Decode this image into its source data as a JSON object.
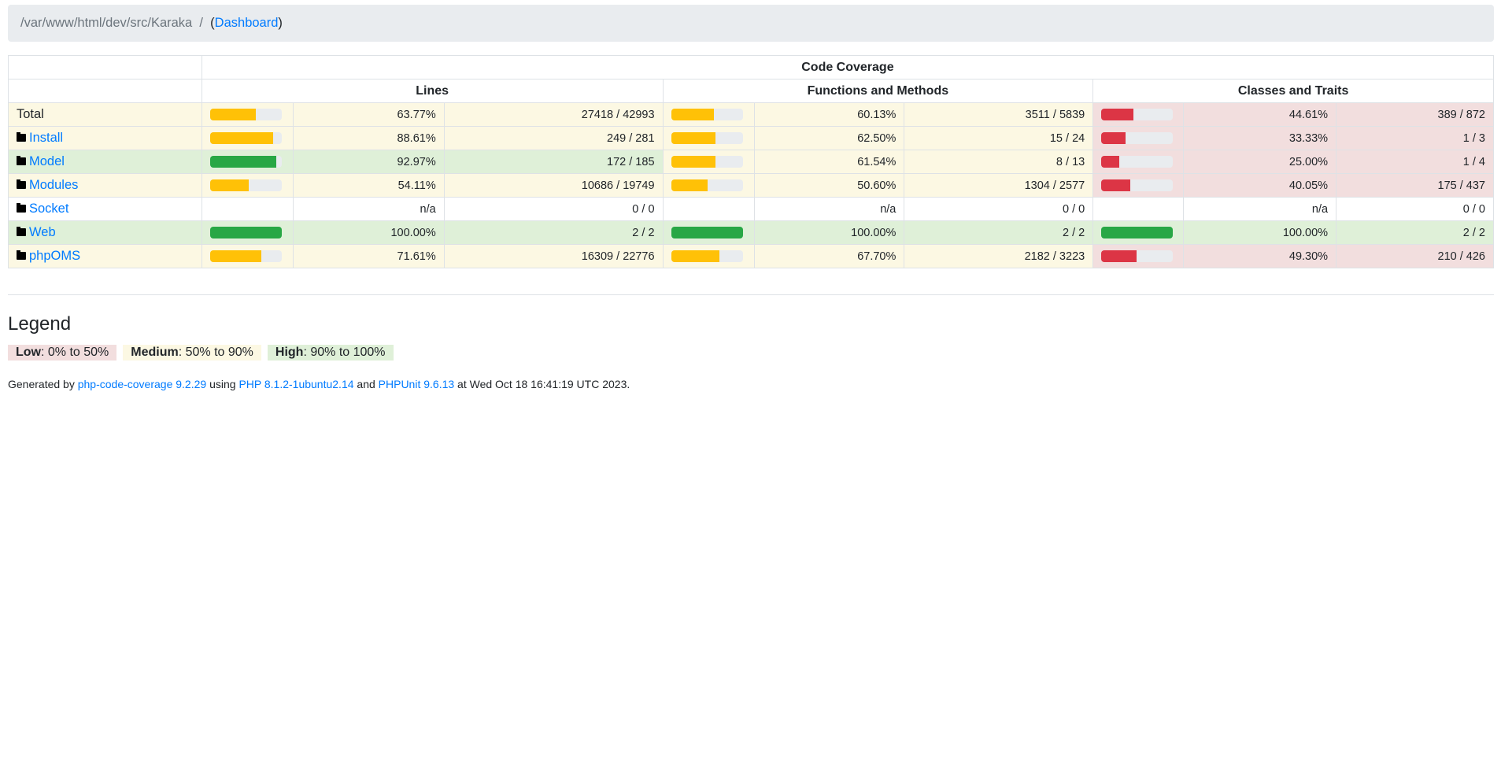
{
  "breadcrumb": {
    "path": "/var/www/html/dev/src/Karaka",
    "sep": "/",
    "open": "(",
    "link": "Dashboard",
    "close": ")"
  },
  "table": {
    "group_header": "Code Coverage",
    "headers": [
      "Lines",
      "Functions and Methods",
      "Classes and Traits"
    ],
    "rows": [
      {
        "name": "Total",
        "folder": false,
        "level": "warning",
        "metrics": [
          {
            "pct": "63.77%",
            "frac": "27418 / 42993",
            "level": "warning",
            "value": 63.77
          },
          {
            "pct": "60.13%",
            "frac": "3511 / 5839",
            "level": "warning",
            "value": 60.13
          },
          {
            "pct": "44.61%",
            "frac": "389 / 872",
            "level": "danger",
            "value": 44.61
          }
        ]
      },
      {
        "name": "Install",
        "folder": true,
        "level": "warning",
        "metrics": [
          {
            "pct": "88.61%",
            "frac": "249 / 281",
            "level": "warning",
            "value": 88.61
          },
          {
            "pct": "62.50%",
            "frac": "15 / 24",
            "level": "warning",
            "value": 62.5
          },
          {
            "pct": "33.33%",
            "frac": "1 / 3",
            "level": "danger",
            "value": 33.33
          }
        ]
      },
      {
        "name": "Model",
        "folder": true,
        "level": "success",
        "metrics": [
          {
            "pct": "92.97%",
            "frac": "172 / 185",
            "level": "success",
            "value": 92.97
          },
          {
            "pct": "61.54%",
            "frac": "8 / 13",
            "level": "warning",
            "value": 61.54
          },
          {
            "pct": "25.00%",
            "frac": "1 / 4",
            "level": "danger",
            "value": 25
          }
        ]
      },
      {
        "name": "Modules",
        "folder": true,
        "level": "warning",
        "metrics": [
          {
            "pct": "54.11%",
            "frac": "10686 / 19749",
            "level": "warning",
            "value": 54.11
          },
          {
            "pct": "50.60%",
            "frac": "1304 / 2577",
            "level": "warning",
            "value": 50.6
          },
          {
            "pct": "40.05%",
            "frac": "175 / 437",
            "level": "danger",
            "value": 40.05
          }
        ]
      },
      {
        "name": "Socket",
        "folder": true,
        "level": "",
        "metrics": [
          {
            "pct": "n/a",
            "frac": "0 / 0",
            "level": "",
            "value": null
          },
          {
            "pct": "n/a",
            "frac": "0 / 0",
            "level": "",
            "value": null
          },
          {
            "pct": "n/a",
            "frac": "0 / 0",
            "level": "",
            "value": null
          }
        ]
      },
      {
        "name": "Web",
        "folder": true,
        "level": "success",
        "metrics": [
          {
            "pct": "100.00%",
            "frac": "2 / 2",
            "level": "success",
            "value": 100
          },
          {
            "pct": "100.00%",
            "frac": "2 / 2",
            "level": "success",
            "value": 100
          },
          {
            "pct": "100.00%",
            "frac": "2 / 2",
            "level": "success",
            "value": 100
          }
        ]
      },
      {
        "name": "phpOMS",
        "folder": true,
        "level": "warning",
        "metrics": [
          {
            "pct": "71.61%",
            "frac": "16309 / 22776",
            "level": "warning",
            "value": 71.61
          },
          {
            "pct": "67.70%",
            "frac": "2182 / 3223",
            "level": "warning",
            "value": 67.7
          },
          {
            "pct": "49.30%",
            "frac": "210 / 426",
            "level": "danger",
            "value": 49.3
          }
        ]
      }
    ]
  },
  "colors": {
    "warning": "#ffc107",
    "success": "#28a745",
    "danger": "#dc3545"
  },
  "legend": {
    "title": "Legend",
    "items": [
      {
        "label": "Low",
        "range": ": 0% to 50%",
        "level": "danger"
      },
      {
        "label": "Medium",
        "range": ": 50% to 90%",
        "level": "warning"
      },
      {
        "label": "High",
        "range": ": 90% to 100%",
        "level": "success"
      }
    ]
  },
  "footer": {
    "t1": "Generated by ",
    "l1": "php-code-coverage 9.2.29",
    "t2": " using ",
    "l2": "PHP 8.1.2-1ubuntu2.14",
    "t3": " and ",
    "l3": "PHPUnit 9.6.13",
    "t4": " at Wed Oct 18 16:41:19 UTC 2023."
  }
}
